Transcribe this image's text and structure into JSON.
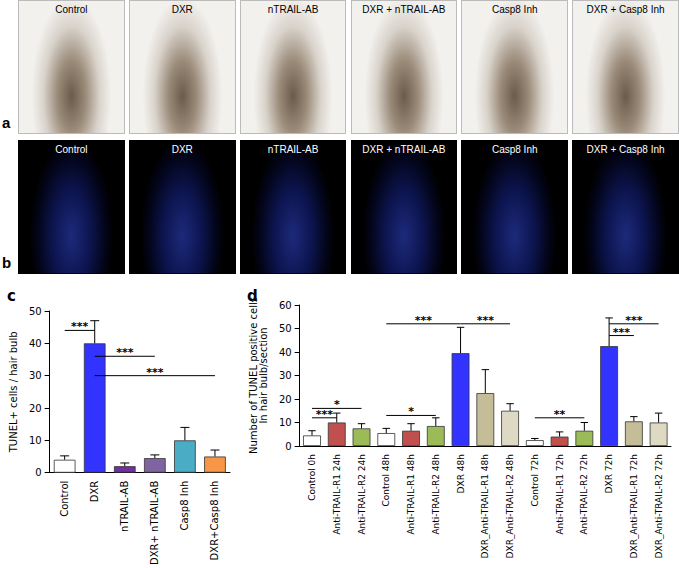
{
  "image_panels": [
    {
      "panel": "a",
      "titles": [
        "Control",
        "DXR",
        "nTRAIL-AB",
        "DXR + nTRAIL-AB",
        "Casp8 Inh",
        "DXR + Casp8 Inh"
      ]
    },
    {
      "panel": "b",
      "titles": [
        "Control",
        "DXR",
        "nTRAIL-AB",
        "DXR + nTRAIL-AB",
        "Casp8 Inh",
        "DXR + Casp8 Inh"
      ]
    }
  ],
  "chart_data": [
    {
      "type": "bar",
      "panel": "c",
      "y_label": "TUNEL+ cells / hair bulb",
      "categories": [
        "Control",
        "DXR",
        "nTRAIL-AB",
        "DXR+ nTRAIL-AB",
        "Casp8 Inh",
        "DXR+Casp8 Inh"
      ],
      "values": [
        4,
        40,
        2,
        4.5,
        10,
        5
      ],
      "errors": [
        1.2,
        7,
        1,
        1,
        4,
        2
      ],
      "colors": [
        "#ffffff",
        "#3333ff",
        "#7030a0",
        "#8064a2",
        "#4bacc6",
        "#f79646"
      ],
      "ylim": [
        0,
        50
      ],
      "yticks": [
        0,
        10,
        20,
        30,
        40,
        50
      ],
      "grid": false,
      "annotations": [
        {
          "from": 0,
          "to": 1,
          "y": 44,
          "text": "***"
        },
        {
          "from": 1,
          "to": 3,
          "y": 36,
          "text": "***"
        },
        {
          "from": 1,
          "to": 5,
          "y": 30,
          "text": "***"
        }
      ]
    },
    {
      "type": "bar",
      "panel": "d",
      "y_label": "Number of TUNEL positive cells\nIn hair bulb/section",
      "categories": [
        "Control 0h",
        "Anti-TRAIL-R1 24h",
        "Anti-TRAIL-R2 24h",
        "Control 48h",
        "Anti-TRAIL-R1 48h",
        "Anti-TRAIL-R2 48h",
        "DXR 48h",
        "DXR_Anti-TRAIL-R1 48h",
        "DXR_Anti-TRAIL-R2 48h",
        "Control 72h",
        "Anti-TRAIL-R1 72h",
        "Anti-TRAIL-R2 72h",
        "DXR 72h",
        "DXR_Anti-TRAIL-R1 72h",
        "DXR_Anti-TRAIL-R2 72h"
      ],
      "values": [
        4.5,
        10,
        7.5,
        5.5,
        6.5,
        8.5,
        39.5,
        22.5,
        15,
        2.5,
        4,
        6.5,
        42.5,
        10.5,
        10
      ],
      "errors": [
        2,
        4,
        2,
        2,
        3,
        3.5,
        11,
        10,
        3,
        0.7,
        2,
        3.5,
        12,
        2,
        4
      ],
      "colors": [
        "#ffffff",
        "#c0504d",
        "#9bbb59",
        "#ffffff",
        "#c0504d",
        "#9bbb59",
        "#3333ff",
        "#c4bd97",
        "#ddd9c3",
        "#ffffff",
        "#c0504d",
        "#9bbb59",
        "#3333ff",
        "#c4bd97",
        "#ddd9c3"
      ],
      "ylim": [
        0,
        60
      ],
      "yticks": [
        0,
        10,
        20,
        30,
        40,
        50,
        60
      ],
      "grid": false,
      "annotations": [
        {
          "from": 0,
          "to": 1,
          "y": 12,
          "text": "***"
        },
        {
          "from": 0,
          "to": 2,
          "y": 16,
          "text": "*"
        },
        {
          "from": 3,
          "to": 5,
          "y": 13,
          "text": "*"
        },
        {
          "from": 3,
          "to": 6,
          "y": 52,
          "text": "***"
        },
        {
          "from": 6,
          "to": 8,
          "y": 52,
          "text": "***"
        },
        {
          "from": 9,
          "to": 11,
          "y": 12,
          "text": "**"
        },
        {
          "from": 12,
          "to": 13,
          "y": 47,
          "text": "***"
        },
        {
          "from": 12,
          "to": 14,
          "y": 52,
          "text": "***"
        }
      ]
    }
  ]
}
